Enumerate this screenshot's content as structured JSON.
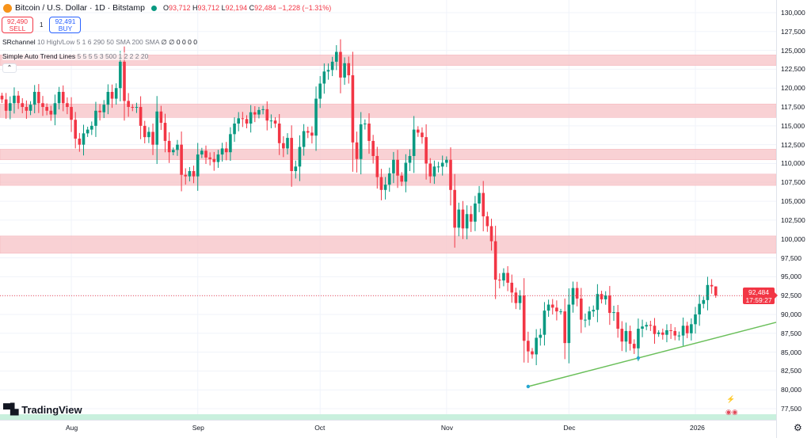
{
  "header": {
    "title": "Bitcoin / U.S. Dollar · 1D · Bitstamp",
    "open_label": "O",
    "open": "93,712",
    "high_label": "H",
    "high": "93,712",
    "low_label": "L",
    "low": "92,194",
    "close_label": "C",
    "close": "92,484",
    "change": "−1,228 (−1.31%)"
  },
  "trade": {
    "sell_price": "92,490",
    "sell_label": "SELL",
    "qty": "1",
    "buy_price": "92,491",
    "buy_label": "BUY"
  },
  "indicators": [
    {
      "name": "SRchannel",
      "params": "10 High/Low 5 1 6 290 50 SMA 200 SMA",
      "values": "∅ ∅ 0 0 0 0"
    },
    {
      "name": "Simple Auto Trend Lines",
      "params": "5 5 5 5 3 500 1 2 2 2 20",
      "values": ""
    }
  ],
  "collapse_icon": "chevron-up-icon",
  "price_tag": {
    "price": "92,484",
    "countdown": "17:59:27"
  },
  "brand": "TradingView",
  "colors": {
    "up": "#089981",
    "down": "#f23645",
    "zone": "#f8c9cd",
    "trendline": "#6abf5a",
    "bottom_band": "#c9f0dd"
  },
  "chart_data": {
    "type": "candlestick",
    "ylim": [
      76000,
      131000
    ],
    "y_ticks": [
      130000,
      127500,
      125000,
      122500,
      120000,
      117500,
      115000,
      112500,
      110000,
      107500,
      105000,
      102500,
      100000,
      97500,
      95000,
      92500,
      90000,
      87500,
      85000,
      82500,
      80000,
      77500
    ],
    "y_tick_labels": [
      "130,000",
      "127,500",
      "125,000",
      "122,500",
      "120,000",
      "117,500",
      "115,000",
      "112,500",
      "110,000",
      "107,500",
      "105,000",
      "102,500",
      "100,000",
      "97,500",
      "95,000",
      "92,500",
      "90,000",
      "87,500",
      "85,000",
      "82,500",
      "80,000",
      "77,500"
    ],
    "x_labels": [
      {
        "label": "Aug",
        "date": "2025-08-01"
      },
      {
        "label": "Sep",
        "date": "2025-09-01"
      },
      {
        "label": "Oct",
        "date": "2025-10-01"
      },
      {
        "label": "Nov",
        "date": "2025-11-01"
      },
      {
        "label": "Dec",
        "date": "2025-12-01"
      },
      {
        "label": "2026",
        "date": "2026-01-01"
      }
    ],
    "start_date": "2025-07-15",
    "closes": [
      118500,
      117000,
      118000,
      119000,
      118000,
      117500,
      117000,
      117800,
      119500,
      118000,
      117500,
      117000,
      116500,
      118000,
      119500,
      118000,
      117500,
      115800,
      113300,
      112500,
      114000,
      114500,
      115000,
      117000,
      116800,
      117800,
      119500,
      118600,
      120000,
      123500,
      118300,
      117500,
      117400,
      117500,
      115000,
      113500,
      114200,
      112500,
      116900,
      115400,
      113000,
      111500,
      111800,
      112500,
      108500,
      108300,
      109000,
      108300,
      111200,
      111700,
      110800,
      110600,
      110200,
      111200,
      112000,
      111500,
      113900,
      115300,
      116000,
      115900,
      115300,
      116800,
      116500,
      117100,
      117200,
      115700,
      115700,
      115300,
      112700,
      112000,
      113400,
      109000,
      109600,
      112200,
      114300,
      114100,
      113700,
      118600,
      120600,
      122200,
      122400,
      123500,
      124800,
      121400,
      123300,
      121700,
      112800,
      110600,
      115200,
      115300,
      113000,
      111000,
      108200,
      106500,
      107200,
      108700,
      110500,
      108400,
      107600,
      110100,
      111000,
      114500,
      114100,
      113500,
      110000,
      108300,
      109600,
      109600,
      110100,
      110500,
      106500,
      101500,
      103900,
      101400,
      103300,
      102300,
      104700,
      106100,
      103000,
      101700,
      99700,
      94600,
      94500,
      95500,
      94200,
      92900,
      91500,
      92500,
      86500,
      85100,
      84700,
      86900,
      87300,
      90500,
      91300,
      90900,
      90400,
      90400,
      86200,
      91300,
      93500,
      92100,
      89300,
      89300,
      90400,
      90600,
      92700,
      92000,
      92500,
      90200,
      90300,
      88100,
      86400,
      87800,
      86100,
      85500,
      88100,
      88400,
      88600,
      88500,
      87400,
      87600,
      87300,
      87900,
      87800,
      87200,
      87200,
      88500,
      87500,
      88700,
      90000,
      91400,
      91900,
      93900,
      93712,
      92484
    ],
    "last_candle": {
      "open": 93712,
      "high": 93712,
      "low": 92194,
      "close": 92484
    },
    "resistance_zones": [
      [
        123000,
        124400
      ],
      [
        116100,
        117900
      ],
      [
        110500,
        111900
      ],
      [
        107100,
        108600
      ],
      [
        98100,
        100400
      ]
    ],
    "trendline": {
      "points": [
        {
          "date": "2025-11-21",
          "price": 80440
        },
        {
          "date": "2025-12-18",
          "price": 84220
        }
      ]
    },
    "current_price": 92484
  }
}
